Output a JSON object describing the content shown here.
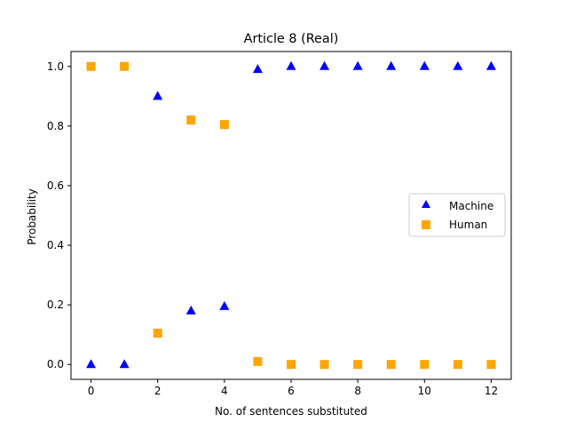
{
  "chart_data": {
    "type": "scatter",
    "title": "Article 8 (Real)",
    "xlabel": "No. of sentences substituted",
    "ylabel": "Probability",
    "xlim": [
      -0.6,
      12.6
    ],
    "ylim": [
      -0.05,
      1.05
    ],
    "xticks": [
      0,
      2,
      4,
      6,
      8,
      10,
      12
    ],
    "xtick_labels": [
      "0",
      "2",
      "4",
      "6",
      "8",
      "10",
      "12"
    ],
    "yticks": [
      0.0,
      0.2,
      0.4,
      0.6,
      0.8,
      1.0
    ],
    "ytick_labels": [
      "0.0",
      "0.2",
      "0.4",
      "0.6",
      "0.8",
      "1.0"
    ],
    "grid": false,
    "legend_position": "center-right",
    "series": [
      {
        "name": "Machine",
        "marker": "triangle",
        "color": "#0000ff",
        "x": [
          0,
          1,
          2,
          3,
          4,
          5,
          6,
          7,
          8,
          9,
          10,
          11,
          12
        ],
        "y": [
          0.0,
          0.0,
          0.9,
          0.18,
          0.195,
          0.99,
          1.0,
          1.0,
          1.0,
          1.0,
          1.0,
          1.0,
          1.0
        ]
      },
      {
        "name": "Human",
        "marker": "square",
        "color": "#ffa500",
        "x": [
          0,
          1,
          2,
          3,
          4,
          5,
          6,
          7,
          8,
          9,
          10,
          11,
          12
        ],
        "y": [
          1.0,
          1.0,
          0.105,
          0.82,
          0.805,
          0.01,
          0.0,
          0.0,
          0.0,
          0.0,
          0.0,
          0.0,
          0.0
        ]
      }
    ]
  }
}
